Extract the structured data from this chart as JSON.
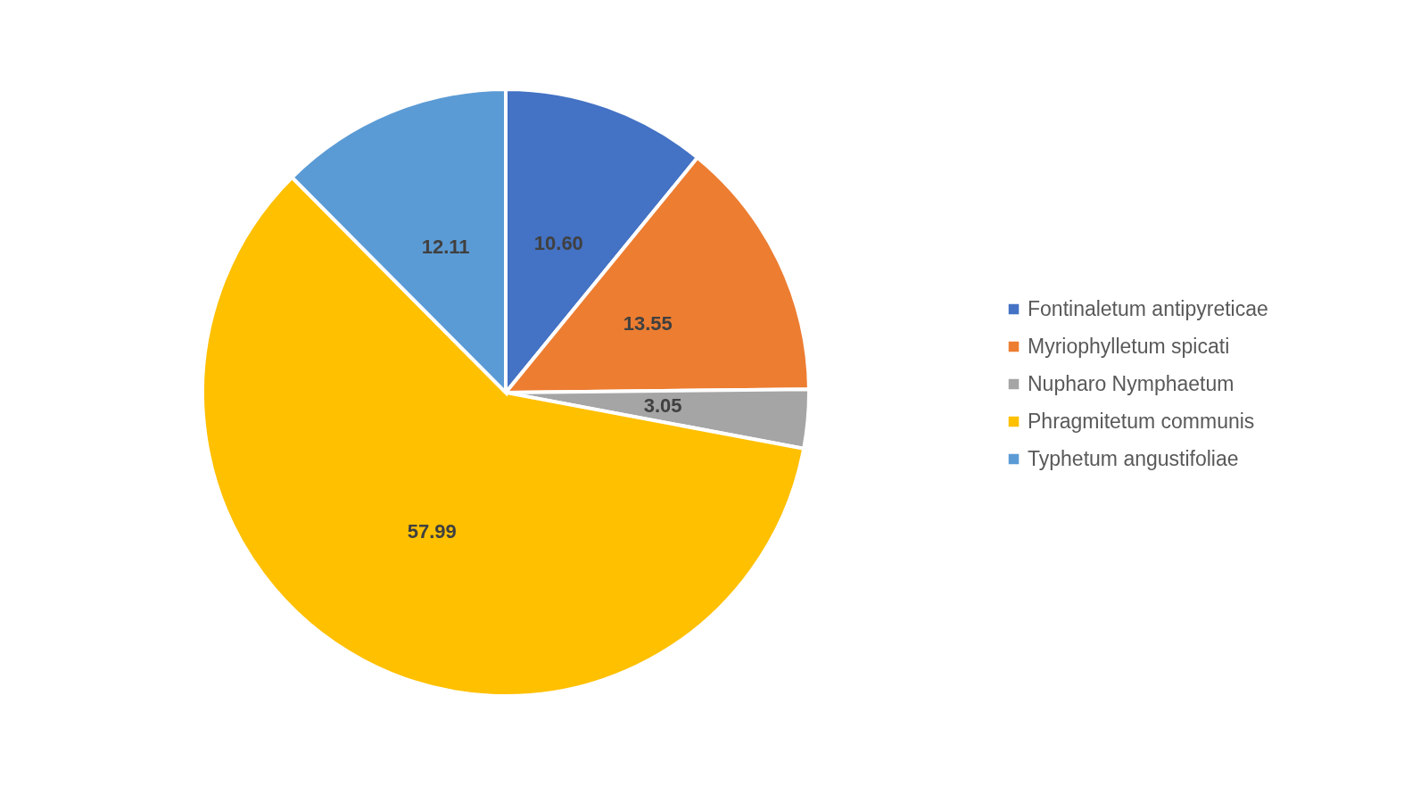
{
  "chart_data": {
    "type": "pie",
    "categories": [
      "Fontinaletum antipyreticae",
      "Myriophylletum spicati",
      "Nupharo Nymphaetum",
      "Phragmitetum communis",
      "Typhetum angustifoliae"
    ],
    "values": [
      10.6,
      13.55,
      3.05,
      57.99,
      12.11
    ],
    "value_labels": [
      "10.60",
      "13.55",
      "3.05",
      "57.99",
      "12.11"
    ],
    "colors": [
      "#4472c4",
      "#ed7d31",
      "#a5a5a5",
      "#ffc000",
      "#5b9bd5"
    ],
    "legend": "right"
  }
}
